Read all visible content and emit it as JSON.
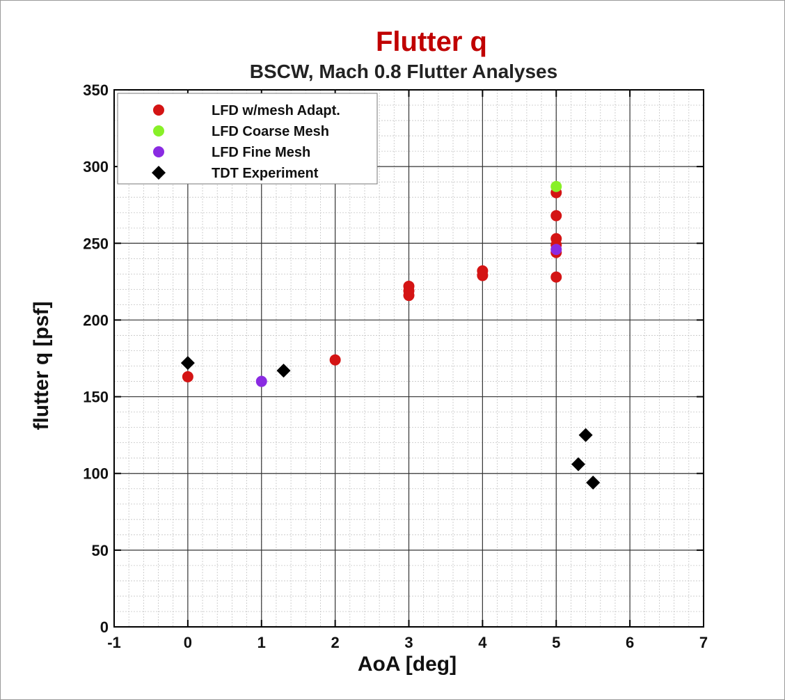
{
  "chart_data": {
    "type": "scatter",
    "title": "Flutter q",
    "subtitle": "BSCW, Mach 0.8 Flutter Analyses",
    "xlabel": "AoA [deg]",
    "ylabel": "flutter q [psf]",
    "xlim": [
      -1,
      7
    ],
    "ylim": [
      0,
      350
    ],
    "x_ticks": [
      "-1",
      "0",
      "1",
      "2",
      "3",
      "4",
      "5",
      "6",
      "7"
    ],
    "y_ticks": [
      "0",
      "50",
      "100",
      "150",
      "200",
      "250",
      "300",
      "350"
    ],
    "x_tick_values": [
      -1,
      0,
      1,
      2,
      3,
      4,
      5,
      6,
      7
    ],
    "y_tick_values": [
      0,
      50,
      100,
      150,
      200,
      250,
      300,
      350
    ],
    "grid": true,
    "legend_position": "top-left",
    "series": [
      {
        "name": "LFD w/mesh Adapt.",
        "marker": "circle",
        "color": "#d41414",
        "points": [
          {
            "x": 0,
            "y": 163
          },
          {
            "x": 2,
            "y": 174
          },
          {
            "x": 3,
            "y": 216
          },
          {
            "x": 3,
            "y": 219
          },
          {
            "x": 3,
            "y": 222
          },
          {
            "x": 4,
            "y": 229
          },
          {
            "x": 4,
            "y": 232
          },
          {
            "x": 5,
            "y": 228
          },
          {
            "x": 5,
            "y": 244
          },
          {
            "x": 5,
            "y": 249
          },
          {
            "x": 5,
            "y": 253
          },
          {
            "x": 5,
            "y": 268
          },
          {
            "x": 5,
            "y": 283
          }
        ]
      },
      {
        "name": "LFD Coarse Mesh",
        "marker": "circle",
        "color": "#88f028",
        "points": [
          {
            "x": 5,
            "y": 287
          }
        ]
      },
      {
        "name": "LFD Fine Mesh",
        "marker": "circle",
        "color": "#8a2be2",
        "points": [
          {
            "x": 1,
            "y": 160
          },
          {
            "x": 5,
            "y": 246
          }
        ]
      },
      {
        "name": "TDT Experiment",
        "marker": "diamond",
        "color": "#000000",
        "points": [
          {
            "x": 0,
            "y": 172
          },
          {
            "x": 1.3,
            "y": 167
          },
          {
            "x": 5.3,
            "y": 106
          },
          {
            "x": 5.4,
            "y": 125
          },
          {
            "x": 5.5,
            "y": 94
          }
        ]
      }
    ]
  }
}
